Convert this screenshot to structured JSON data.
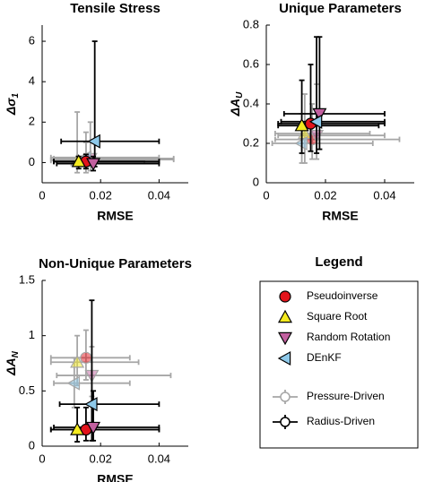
{
  "chart_data": [
    {
      "type": "scatter",
      "title": "Tensile Stress",
      "xlabel": "RMSE",
      "ylabel": "Δσ",
      "ylabel_sub": "1",
      "xlim": [
        0,
        0.05
      ],
      "xticks": [
        0,
        0.02,
        0.04
      ],
      "ylim": [
        -1,
        6.8
      ],
      "yticks": [
        0,
        2,
        4,
        6
      ],
      "series": [
        {
          "x": [
            0.015,
            0.012,
            0.0165,
            0.015
          ],
          "y": [
            0.15,
            0.1,
            0.2,
            0.25
          ],
          "xlo": [
            0.003,
            0.003,
            0.004,
            0.003
          ],
          "xhi": [
            0.045,
            0.035,
            0.045,
            0.04
          ],
          "ylo": [
            -0.5,
            -0.5,
            -0.4,
            -0.3
          ],
          "yhi": [
            1.0,
            2.5,
            2.0,
            1.5
          ]
        },
        {
          "x": [
            0.015,
            0.0125,
            0.0175,
            0.018
          ],
          "y": [
            0.05,
            0.05,
            -0.05,
            1.05
          ],
          "xlo": [
            0.004,
            0.004,
            0.005,
            0.0065
          ],
          "xhi": [
            0.04,
            0.04,
            0.04,
            0.04
          ],
          "ylo": [
            -0.3,
            -0.3,
            -0.4,
            -0.2
          ],
          "yhi": [
            0.4,
            0.3,
            0.3,
            6.0
          ]
        }
      ]
    },
    {
      "type": "scatter",
      "title": "Unique Parameters",
      "xlabel": "RMSE",
      "ylabel": "ΔA",
      "ylabel_sub": "U",
      "xlim": [
        0,
        0.05
      ],
      "xticks": [
        0,
        0.02,
        0.04
      ],
      "ylim": [
        0,
        0.8
      ],
      "yticks": [
        0,
        0.2,
        0.4,
        0.6,
        0.8
      ],
      "series": [
        {
          "x": [
            0.0155,
            0.013,
            0.017,
            0.012
          ],
          "y": [
            0.22,
            0.25,
            0.24,
            0.2
          ],
          "xlo": [
            0.003,
            0.003,
            0.004,
            0.002
          ],
          "xhi": [
            0.045,
            0.035,
            0.04,
            0.036
          ],
          "ylo": [
            0.12,
            0.1,
            0.12,
            0.1
          ],
          "yhi": [
            0.4,
            0.45,
            0.5,
            0.35
          ]
        },
        {
          "x": [
            0.015,
            0.012,
            0.018,
            0.017
          ],
          "y": [
            0.3,
            0.29,
            0.35,
            0.31
          ],
          "xlo": [
            0.004,
            0.004,
            0.006,
            0.005
          ],
          "xhi": [
            0.04,
            0.038,
            0.04,
            0.04
          ],
          "ylo": [
            0.16,
            0.15,
            0.17,
            0.15
          ],
          "yhi": [
            0.6,
            0.52,
            0.74,
            0.74
          ]
        }
      ]
    },
    {
      "type": "scatter",
      "title": "Non-Unique Parameters",
      "xlabel": "RMSE",
      "ylabel": "ΔA",
      "ylabel_sub": "N",
      "xlim": [
        0,
        0.05
      ],
      "xticks": [
        0,
        0.02,
        0.04
      ],
      "ylim": [
        0,
        1.5
      ],
      "yticks": [
        0,
        0.5,
        1,
        1.5
      ],
      "series": [
        {
          "x": [
            0.015,
            0.012,
            0.017,
            0.011
          ],
          "y": [
            0.8,
            0.76,
            0.64,
            0.57
          ],
          "xlo": [
            0.003,
            0.003,
            0.005,
            0.004
          ],
          "xhi": [
            0.03,
            0.033,
            0.044,
            0.03
          ],
          "ylo": [
            0.6,
            0.55,
            0.45,
            0.35
          ],
          "yhi": [
            1.05,
            1.0,
            0.9,
            0.8
          ]
        },
        {
          "x": [
            0.015,
            0.012,
            0.0175,
            0.017
          ],
          "y": [
            0.15,
            0.15,
            0.17,
            0.38
          ],
          "xlo": [
            0.003,
            0.003,
            0.004,
            0.006
          ],
          "xhi": [
            0.04,
            0.04,
            0.04,
            0.04
          ],
          "ylo": [
            0.05,
            0.04,
            0.05,
            0.05
          ],
          "yhi": [
            0.35,
            0.35,
            0.5,
            1.32
          ]
        }
      ]
    }
  ],
  "legend": {
    "title": "Legend",
    "methods": [
      {
        "name": "Pseudoinverse",
        "color": "#e3141c",
        "marker": "circle"
      },
      {
        "name": "Square Root",
        "color": "#f4ea1f",
        "marker": "up"
      },
      {
        "name": "Random Rotation",
        "color": "#c2609f",
        "marker": "down"
      },
      {
        "name": "DEnKF",
        "color": "#8ec9ea",
        "marker": "left"
      }
    ],
    "drives": [
      {
        "name": "Pressure-Driven",
        "color": "#a6a6a6",
        "marker_opacity": 0.5
      },
      {
        "name": "Radius-Driven",
        "color": "#000000",
        "marker_opacity": 1
      }
    ]
  }
}
